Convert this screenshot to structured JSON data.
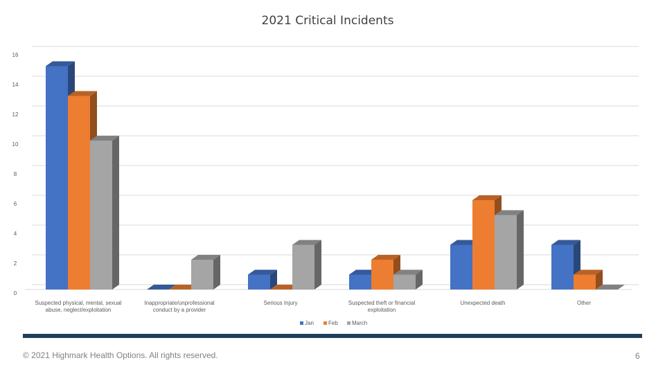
{
  "chart_data": {
    "type": "bar",
    "title": "2021 Critical Incidents",
    "categories": [
      [
        "Suspected physical, mental, sexual",
        "abuse, neglect/exploitation"
      ],
      [
        "Inappropriate/unprofessional",
        "conduct by a provider"
      ],
      [
        "Serious Injury"
      ],
      [
        "Suspected theft or financial",
        "exploitation"
      ],
      [
        "Unexpected death"
      ],
      [
        "Other"
      ]
    ],
    "series": [
      {
        "name": "Jan",
        "values": [
          15,
          0,
          1,
          1,
          3,
          3
        ],
        "color": "#4472c4"
      },
      {
        "name": "Feb",
        "values": [
          13,
          0,
          0,
          2,
          6,
          1
        ],
        "color": "#ed7d31"
      },
      {
        "name": "March",
        "values": [
          10,
          2,
          3,
          1,
          5,
          0
        ],
        "color": "#a5a5a5"
      }
    ],
    "ylim": [
      0,
      16
    ],
    "yticks": [
      0,
      2,
      4,
      6,
      8,
      10,
      12,
      14,
      16
    ],
    "grid": true,
    "legend": "bottom",
    "style": "3d-column"
  },
  "footer": {
    "copyright": "© 2021 Highmark Health Options. All rights reserved.",
    "page_number": "6"
  },
  "colors": {
    "footer_bar": "#1f3f5c"
  }
}
